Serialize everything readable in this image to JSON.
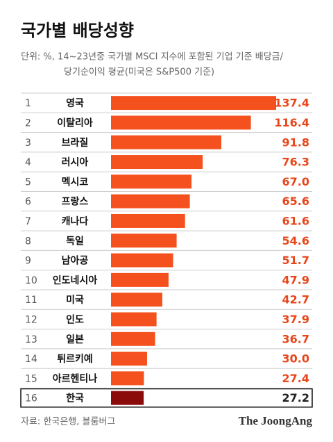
{
  "chart_data": {
    "type": "bar",
    "title": "국가별 배당성향",
    "subtitle": [
      "단위: %, 14~23년중 국가별 MSCI 지수에 포함된 기업 기준 배당금/",
      "당기순이익 평균(미국은 S&P500 기준)"
    ],
    "ranks": [
      1,
      2,
      3,
      4,
      5,
      6,
      7,
      8,
      9,
      10,
      11,
      12,
      13,
      14,
      15,
      16
    ],
    "categories": [
      "영국",
      "이탈리아",
      "브라질",
      "러시아",
      "멕시코",
      "프랑스",
      "캐나다",
      "독일",
      "남아공",
      "인도네시아",
      "미국",
      "인도",
      "일본",
      "튀르키예",
      "아르헨티나",
      "한국"
    ],
    "values": [
      137.4,
      116.4,
      91.8,
      76.3,
      67.0,
      65.6,
      61.6,
      54.6,
      51.7,
      47.9,
      42.7,
      37.9,
      36.7,
      30.0,
      27.4,
      27.2
    ],
    "value_labels": [
      "137.4",
      "116.4",
      "91.8",
      "76.3",
      "67.0",
      "65.6",
      "61.6",
      "54.6",
      "51.7",
      "47.9",
      "42.7",
      "37.9",
      "36.7",
      "30.0",
      "27.4",
      "27.2"
    ],
    "color": "#f4511e",
    "colors": [
      "#f4511e",
      "#f4511e",
      "#f4511e",
      "#f4511e",
      "#f4511e",
      "#f4511e",
      "#f4511e",
      "#f4511e",
      "#f4511e",
      "#f4511e",
      "#f4511e",
      "#f4511e",
      "#f4511e",
      "#f4511e",
      "#f4511e",
      "#8b0a0a"
    ],
    "source": "자료: 한국은행, 블룸버그",
    "brand": "The JoongAng"
  }
}
